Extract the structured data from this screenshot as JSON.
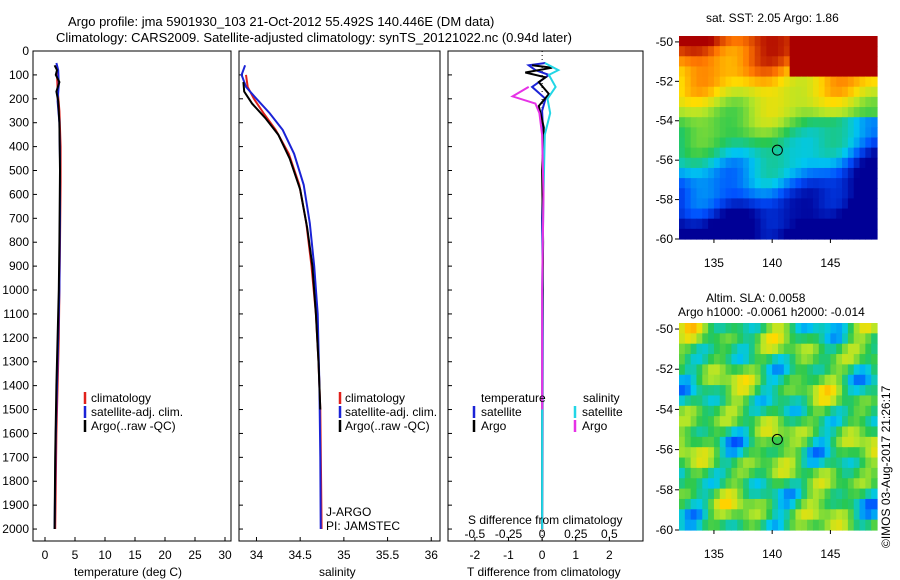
{
  "title": {
    "line1": "Argo profile: jma 5901930_103 21-Oct-2012 55.492S 140.446E (DM data)",
    "line2": "Climatology: CARS2009. Satellite-adjusted climatology: synTS_20121022.nc (0.94d later)"
  },
  "colors": {
    "climatology": "#e0201b",
    "satellite": "#1b23d6",
    "argo": "#000000",
    "salinity_sat": "#22d6e6",
    "salinity_argo": "#e632e6"
  },
  "chart_data": [
    {
      "type": "line",
      "name": "temperature-profile",
      "xlabel": "temperature (deg C)",
      "xlim": [
        -2,
        31
      ],
      "ylim": [
        2050,
        0
      ],
      "xticks": [
        0,
        5,
        10,
        15,
        20,
        25,
        30
      ],
      "yticks": [
        0,
        100,
        200,
        300,
        400,
        500,
        600,
        700,
        800,
        900,
        1000,
        1100,
        1200,
        1300,
        1400,
        1500,
        1600,
        1700,
        1800,
        1900,
        2000
      ],
      "legend": [
        "climatology",
        "satellite-adj. clim.",
        "Argo(..raw -QC)"
      ],
      "legend_position": "lower-center",
      "series": [
        {
          "name": "climatology",
          "x": [
            2.0,
            2.0,
            2.1,
            2.4,
            2.6,
            2.6,
            2.5,
            2.4,
            2.3,
            2.1,
            1.9,
            1.8,
            1.7
          ],
          "y": [
            60,
            100,
            160,
            250,
            400,
            550,
            800,
            1000,
            1200,
            1400,
            1600,
            1800,
            2000
          ]
        },
        {
          "name": "satellite-adj. clim.",
          "x": [
            1.9,
            2.2,
            2.3,
            2.1,
            2.4,
            2.5,
            2.5,
            2.4,
            2.2,
            2.0,
            1.8,
            1.7,
            1.6
          ],
          "y": [
            50,
            80,
            140,
            210,
            300,
            450,
            700,
            1000,
            1200,
            1400,
            1600,
            1800,
            2000
          ]
        },
        {
          "name": "Argo(..raw -QC)",
          "x": [
            1.6,
            2.0,
            1.8,
            2.4,
            1.9,
            2.2,
            2.4,
            2.5,
            2.4,
            2.3,
            2.1,
            1.9,
            1.7,
            1.6
          ],
          "y": [
            60,
            80,
            100,
            130,
            170,
            210,
            300,
            500,
            800,
            1000,
            1200,
            1400,
            1700,
            2000
          ]
        }
      ]
    },
    {
      "type": "line",
      "name": "salinity-profile",
      "xlabel": "salinity",
      "xlim": [
        33.8,
        36.1
      ],
      "ylim": [
        2050,
        0
      ],
      "xticks": [
        34,
        34.5,
        35,
        35.5,
        36
      ],
      "legend": [
        "climatology",
        "satellite-adj. clim.",
        "Argo(..raw -QC)"
      ],
      "legend_position": "lower-right",
      "annotations": [
        "J-ARGO",
        "PI: JAMSTEC"
      ],
      "series": [
        {
          "name": "climatology",
          "x": [
            33.88,
            33.9,
            33.97,
            34.08,
            34.22,
            34.37,
            34.49,
            34.57,
            34.63,
            34.68,
            34.71,
            34.73,
            34.74,
            34.745
          ],
          "y": [
            100,
            150,
            200,
            260,
            330,
            430,
            560,
            720,
            900,
            1100,
            1300,
            1500,
            1800,
            2000
          ]
        },
        {
          "name": "satellite-adj. clim.",
          "x": [
            33.87,
            33.83,
            33.88,
            34.0,
            34.15,
            34.3,
            34.43,
            34.54,
            34.61,
            34.66,
            34.7,
            34.72,
            34.73,
            34.735
          ],
          "y": [
            60,
            100,
            150,
            200,
            260,
            330,
            430,
            560,
            720,
            900,
            1100,
            1400,
            1700,
            2000
          ]
        },
        {
          "name": "Argo(..raw -QC)",
          "x": [
            33.85,
            33.86,
            33.95,
            34.1,
            34.25,
            34.38,
            34.5,
            34.58,
            34.64,
            34.68,
            34.71,
            34.73
          ],
          "y": [
            130,
            170,
            220,
            280,
            350,
            450,
            580,
            740,
            900,
            1100,
            1300,
            1500
          ]
        }
      ]
    },
    {
      "type": "line",
      "name": "difference-profile",
      "xlabel": "T difference from climatology",
      "xlabel_top": "S difference from climatology",
      "xlim": [
        -2.8,
        3.0
      ],
      "s_xlim": [
        -0.7,
        0.75
      ],
      "ylim": [
        2050,
        0
      ],
      "xticks": [
        -2,
        -1,
        0,
        1,
        2
      ],
      "s_xticks": [
        -0.5,
        -0.25,
        0,
        0.25,
        0.5
      ],
      "s_xtick_labels": [
        "-0.5",
        "-0.25",
        "0",
        "0.25",
        "0.5"
      ],
      "legend": {
        "temperature": "temperature",
        "salinity": "salinity",
        "satellite": "satellite",
        "argo": "Argo"
      },
      "series": [
        {
          "name": "temperature satellite",
          "x": [
            0.1,
            -0.4,
            -0.2,
            0.2,
            -0.3,
            0.1,
            0.0,
            0.05,
            0.0,
            0.02,
            0.0
          ],
          "y": [
            50,
            60,
            80,
            100,
            150,
            200,
            250,
            400,
            700,
            1000,
            2000
          ]
        },
        {
          "name": "temperature Argo",
          "x": [
            -0.3,
            0.3,
            -0.5,
            0.1,
            -0.1,
            0.2,
            -0.1,
            0.05,
            0.0,
            0.03,
            0.0,
            0.0
          ],
          "y": [
            60,
            70,
            90,
            110,
            130,
            180,
            230,
            320,
            500,
            800,
            1200,
            2000
          ]
        },
        {
          "name": "salinity satellite",
          "x": [
            0.02,
            0.12,
            0.05,
            0.1,
            0.04,
            0.06,
            0.02,
            0.01,
            0.0,
            0.0
          ],
          "y": [
            50,
            80,
            100,
            150,
            200,
            260,
            350,
            600,
            1000,
            2000
          ]
        },
        {
          "name": "salinity Argo",
          "x": [
            -0.1,
            -0.22,
            -0.05,
            -0.02,
            0.0,
            0.01,
            0.0,
            0.0
          ],
          "y": [
            150,
            190,
            220,
            260,
            350,
            600,
            1000,
            1500
          ]
        }
      ]
    }
  ],
  "sst_map": {
    "title": "sat. SST: 2.05 Argo: 1.86",
    "xticks": [
      "135",
      "140",
      "145"
    ],
    "yticks": [
      "-50",
      "-52",
      "-54",
      "-56",
      "-58",
      "-60"
    ],
    "lon_range": [
      132,
      149
    ],
    "lat_range": [
      -60,
      -49.7
    ],
    "marker_lon": 140.446,
    "marker_lat": -55.492
  },
  "sla_map": {
    "title": "Altim. SLA: 0.0058",
    "subtitle": "Argo h1000: -0.0061 h2000: -0.014",
    "xticks": [
      "135",
      "140",
      "145"
    ],
    "yticks": [
      "-50",
      "-52",
      "-54",
      "-56",
      "-58",
      "-60"
    ],
    "lon_range": [
      132,
      149
    ],
    "lat_range": [
      -60,
      -49.7
    ],
    "marker_lon": 140.446,
    "marker_lat": -55.492
  },
  "credit": "©IMOS 03-Aug-2017 21:26:17"
}
